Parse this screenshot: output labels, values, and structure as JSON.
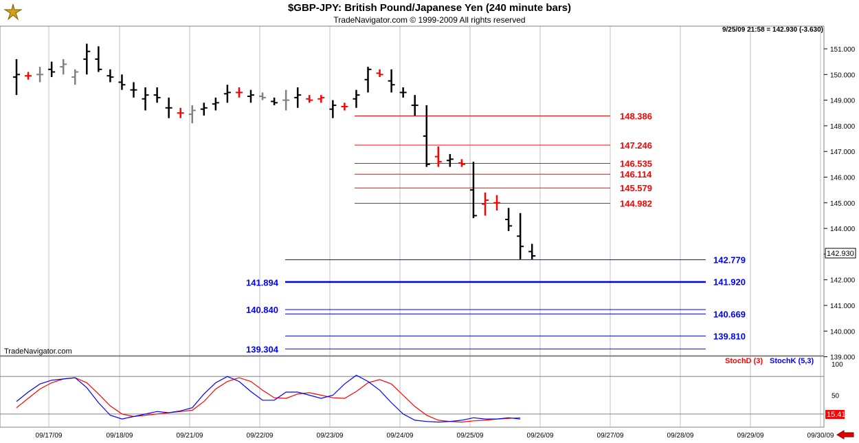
{
  "title": "$GBP-JPY:  British Pound/Japanese Yen  (240 minute bars)",
  "subtitle": "TradeNavigator.com © 1999-2009 All rights reserved",
  "timestamp": "9/25/09 21:58 = 142.930 (-3.630)",
  "brand": "TradeNavigator.com",
  "last_price_label": "142.930",
  "stoch_value_label": "15.41",
  "colors": {
    "up": "#ff0000",
    "down": "#000000",
    "neutral": "#808080",
    "resistance": "#ff0000",
    "support": "#0000ff"
  },
  "chart_data": {
    "type": "ohlc",
    "y_axis": {
      "min": 139.0,
      "max": 151.3,
      "ticks": [
        "151.000",
        "150.000",
        "149.000",
        "148.000",
        "147.000",
        "146.000",
        "145.000",
        "144.000",
        "143.000",
        "142.000",
        "141.000",
        "140.000",
        "139.000"
      ]
    },
    "x_axis": {
      "ticks": [
        "09/17/09",
        "09/18/09",
        "09/21/09",
        "09/22/09",
        "09/23/09",
        "09/24/09",
        "09/25/09",
        "09/26/09",
        "09/27/09",
        "09/28/09",
        "09/29/09",
        "09/30/09"
      ]
    },
    "bars": [
      {
        "h": 150.6,
        "l": 149.2,
        "c": 150.0,
        "col": "down"
      },
      {
        "h": 150.1,
        "l": 149.8,
        "c": 149.95,
        "col": "up"
      },
      {
        "h": 150.3,
        "l": 149.7,
        "c": 150.0,
        "col": "neutral"
      },
      {
        "h": 150.5,
        "l": 149.9,
        "c": 150.1,
        "col": "down"
      },
      {
        "h": 150.6,
        "l": 150.0,
        "c": 150.4,
        "col": "neutral"
      },
      {
        "h": 150.2,
        "l": 149.6,
        "c": 150.1,
        "col": "neutral"
      },
      {
        "h": 151.2,
        "l": 150.0,
        "c": 150.9,
        "col": "down"
      },
      {
        "h": 151.1,
        "l": 150.1,
        "c": 150.2,
        "col": "down"
      },
      {
        "h": 150.2,
        "l": 149.7,
        "c": 149.9,
        "col": "down"
      },
      {
        "h": 150.0,
        "l": 149.4,
        "c": 149.6,
        "col": "down"
      },
      {
        "h": 149.7,
        "l": 149.1,
        "c": 149.4,
        "col": "down"
      },
      {
        "h": 149.5,
        "l": 148.6,
        "c": 149.2,
        "col": "down"
      },
      {
        "h": 149.5,
        "l": 148.9,
        "c": 149.1,
        "col": "down"
      },
      {
        "h": 149.1,
        "l": 148.3,
        "c": 148.7,
        "col": "down"
      },
      {
        "h": 148.7,
        "l": 148.3,
        "c": 148.5,
        "col": "up"
      },
      {
        "h": 148.8,
        "l": 148.1,
        "c": 148.6,
        "col": "neutral"
      },
      {
        "h": 148.9,
        "l": 148.4,
        "c": 148.7,
        "col": "down"
      },
      {
        "h": 149.1,
        "l": 148.6,
        "c": 148.9,
        "col": "down"
      },
      {
        "h": 149.6,
        "l": 148.9,
        "c": 149.3,
        "col": "down"
      },
      {
        "h": 149.5,
        "l": 149.1,
        "c": 149.3,
        "col": "up"
      },
      {
        "h": 149.4,
        "l": 148.9,
        "c": 149.2,
        "col": "down"
      },
      {
        "h": 149.3,
        "l": 149.0,
        "c": 149.1,
        "col": "neutral"
      },
      {
        "h": 149.1,
        "l": 148.8,
        "c": 148.9,
        "col": "down"
      },
      {
        "h": 149.4,
        "l": 148.6,
        "c": 149.0,
        "col": "neutral"
      },
      {
        "h": 149.5,
        "l": 148.7,
        "c": 149.2,
        "col": "down"
      },
      {
        "h": 149.2,
        "l": 148.9,
        "c": 149.0,
        "col": "up"
      },
      {
        "h": 149.2,
        "l": 148.9,
        "c": 149.1,
        "col": "up"
      },
      {
        "h": 149.0,
        "l": 148.3,
        "c": 148.8,
        "col": "down"
      },
      {
        "h": 148.9,
        "l": 148.6,
        "c": 148.75,
        "col": "up"
      },
      {
        "h": 149.4,
        "l": 148.7,
        "c": 149.2,
        "col": "down"
      },
      {
        "h": 150.3,
        "l": 149.3,
        "c": 150.2,
        "col": "down"
      },
      {
        "h": 150.2,
        "l": 149.9,
        "c": 150.0,
        "col": "up"
      },
      {
        "h": 150.2,
        "l": 149.3,
        "c": 149.6,
        "col": "down"
      },
      {
        "h": 149.5,
        "l": 149.1,
        "c": 149.3,
        "col": "down"
      },
      {
        "h": 149.2,
        "l": 148.4,
        "c": 148.8,
        "col": "down"
      },
      {
        "h": 148.8,
        "l": 146.4,
        "c": 146.5,
        "col": "down"
      },
      {
        "h": 147.2,
        "l": 146.4,
        "c": 146.6,
        "col": "up"
      },
      {
        "h": 146.9,
        "l": 146.4,
        "c": 146.7,
        "col": "down"
      },
      {
        "h": 146.7,
        "l": 146.4,
        "c": 146.5,
        "col": "up"
      },
      {
        "h": 146.6,
        "l": 144.4,
        "c": 144.5,
        "col": "down"
      },
      {
        "h": 145.4,
        "l": 144.5,
        "c": 145.1,
        "col": "up"
      },
      {
        "h": 145.3,
        "l": 144.7,
        "c": 145.0,
        "col": "up"
      },
      {
        "h": 144.8,
        "l": 143.9,
        "c": 144.1,
        "col": "down"
      },
      {
        "h": 144.6,
        "l": 142.8,
        "c": 143.3,
        "col": "down"
      },
      {
        "h": 143.4,
        "l": 142.8,
        "c": 142.93,
        "col": "down"
      }
    ],
    "resistance_levels": [
      "148.386",
      "147.246",
      "146.535",
      "146.114",
      "145.579",
      "144.982"
    ],
    "support_levels_right": [
      "142.779",
      "141.920",
      "140.669",
      "139.810"
    ],
    "support_levels_left": [
      "141.894",
      "140.840",
      "139.304"
    ],
    "stochastic": {
      "y_ticks": [
        "100",
        "50"
      ],
      "upper_band": 80,
      "lower_band": 20,
      "series": [
        {
          "name": "StochD (3)",
          "color": "#ff0000",
          "values": [
            30,
            45,
            60,
            70,
            76,
            78,
            70,
            52,
            33,
            20,
            16,
            18,
            20,
            22,
            24,
            26,
            40,
            60,
            72,
            78,
            72,
            58,
            46,
            45,
            52,
            54,
            50,
            46,
            45,
            56,
            70,
            75,
            68,
            50,
            32,
            18,
            10,
            8,
            7,
            9,
            10,
            12,
            13,
            14
          ]
        },
        {
          "name": "StochK (5,3)",
          "color": "#0000ff",
          "values": [
            40,
            55,
            68,
            74,
            76,
            78,
            62,
            38,
            18,
            12,
            16,
            20,
            24,
            22,
            25,
            30,
            52,
            70,
            80,
            72,
            56,
            42,
            42,
            55,
            55,
            50,
            45,
            50,
            68,
            82,
            72,
            58,
            38,
            20,
            10,
            8,
            7,
            8,
            10,
            14,
            12,
            12,
            14,
            12
          ]
        }
      ]
    }
  }
}
